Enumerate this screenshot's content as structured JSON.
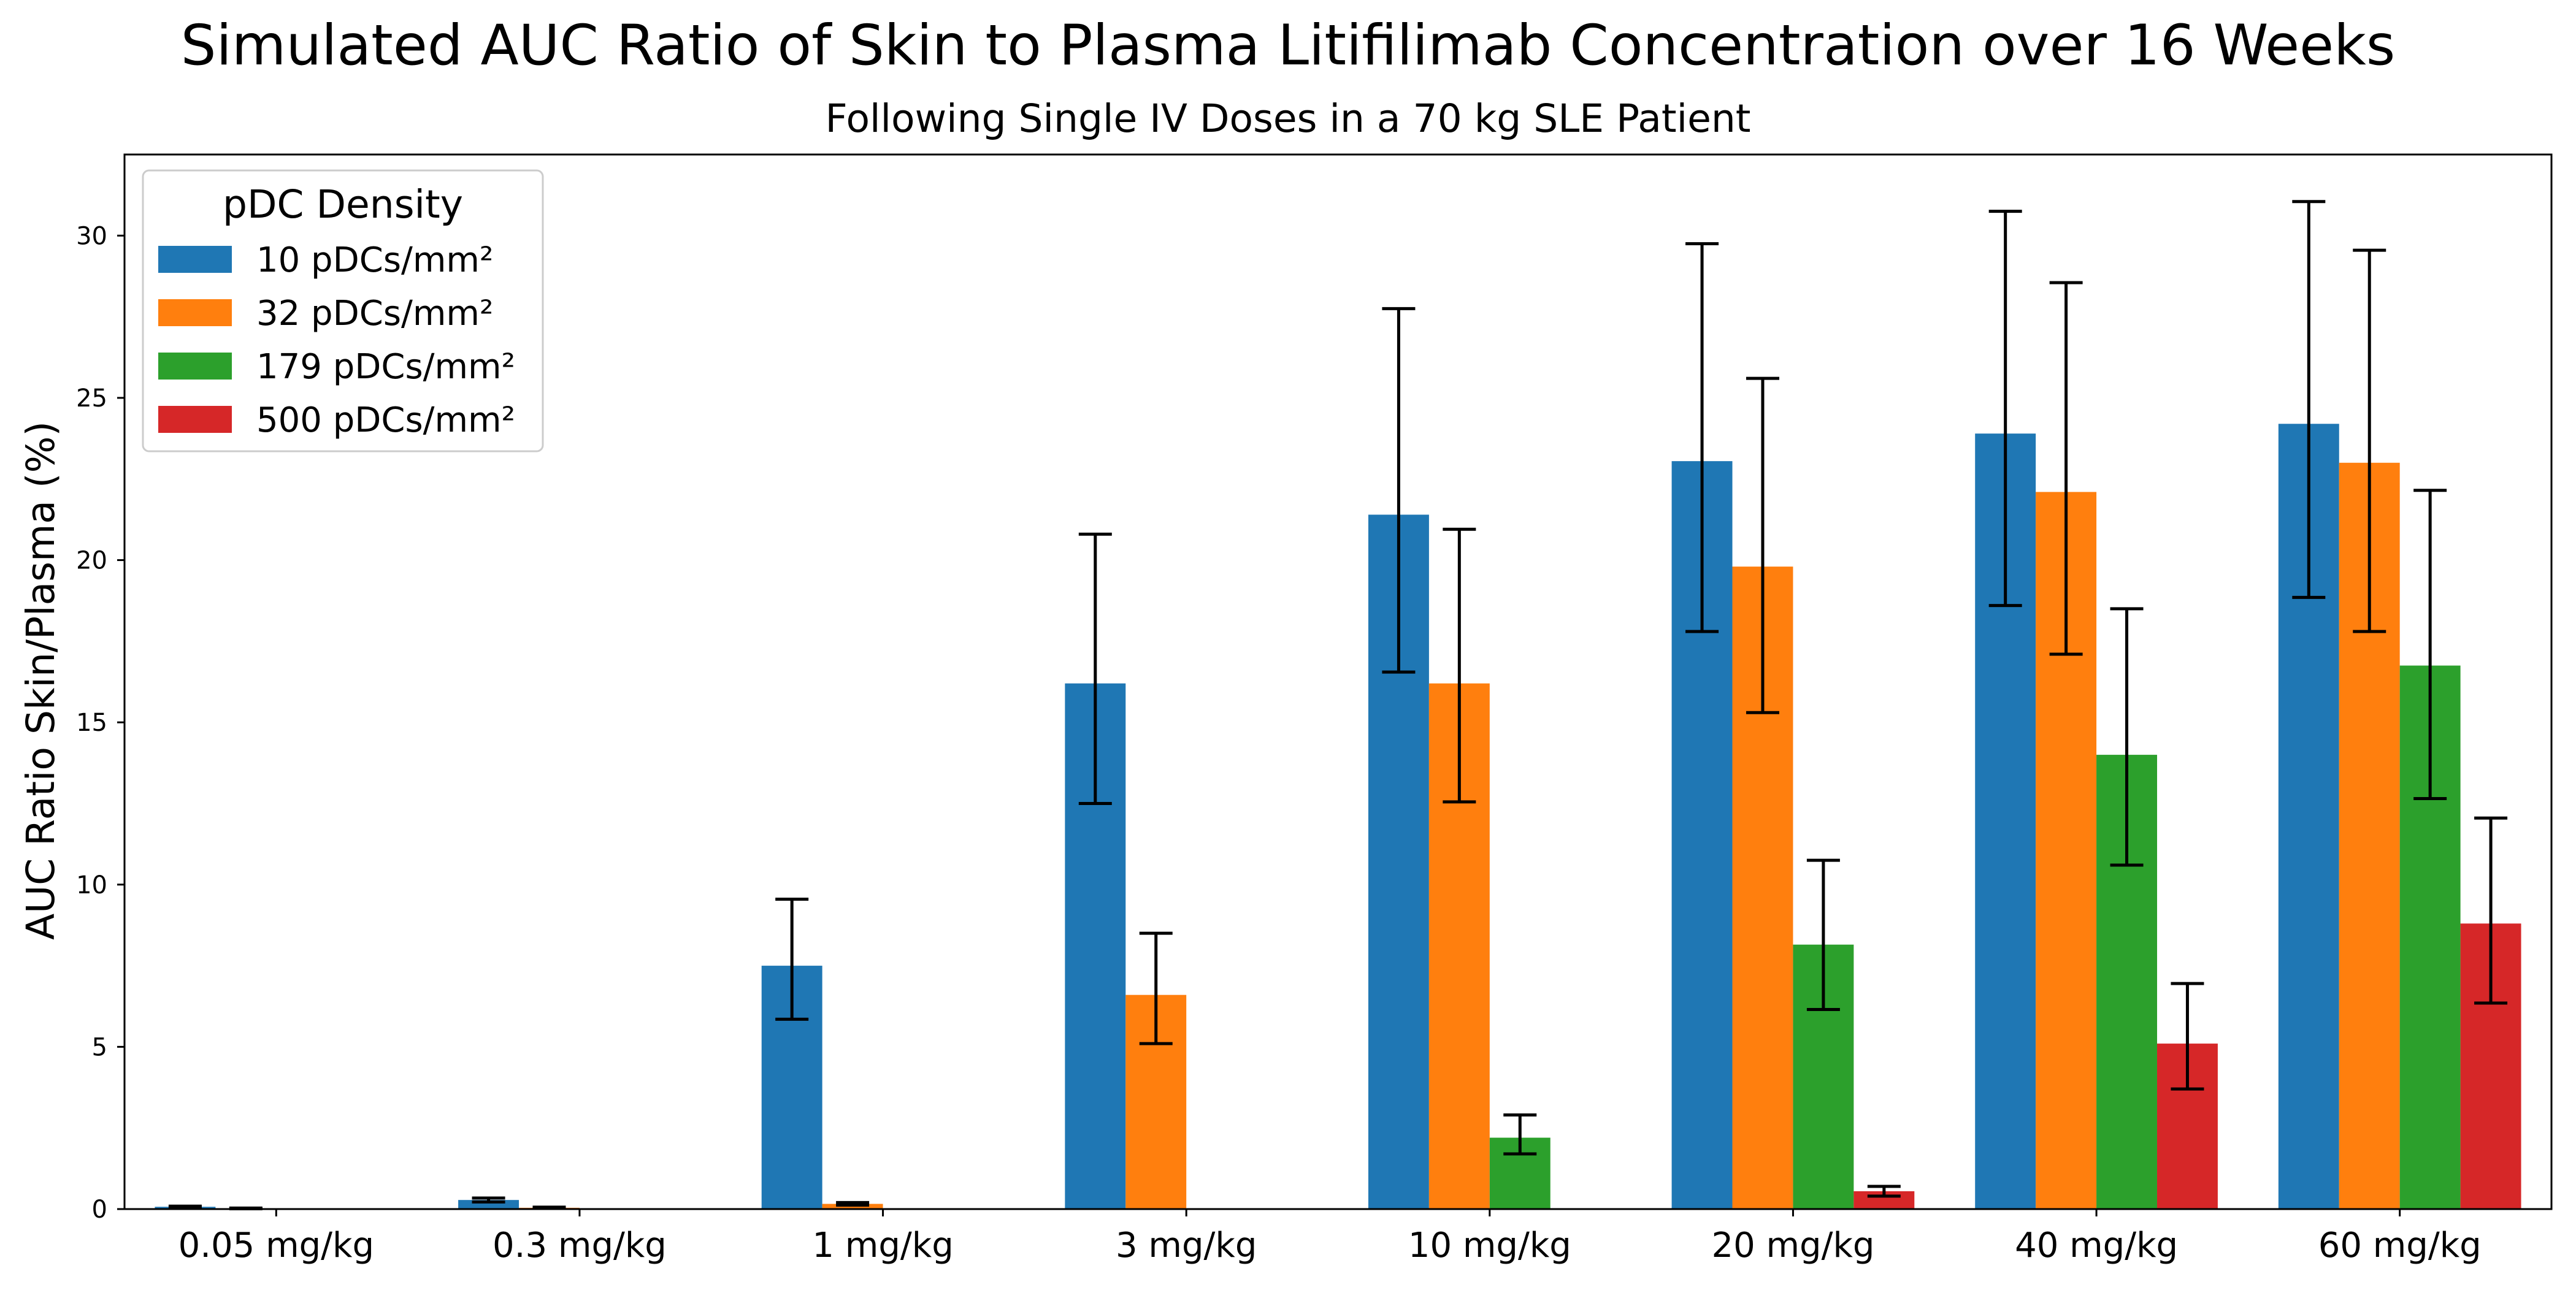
{
  "chart_data": {
    "type": "bar",
    "title": "Simulated AUC Ratio of Skin to Plasma Litifilimab Concentration over 16 Weeks",
    "subtitle": "Following Single IV Doses in a 70 kg SLE Patient",
    "xlabel": "",
    "ylabel": "AUC Ratio Skin/Plasma (%)",
    "ylim": [
      0,
      32.5
    ],
    "yticks": [
      0,
      5,
      10,
      15,
      20,
      25,
      30
    ],
    "grid": false,
    "legend": {
      "title": "pDC Density",
      "placement": "top-left"
    },
    "categories": [
      "0.05 mg/kg",
      "0.3 mg/kg",
      "1 mg/kg",
      "3 mg/kg",
      "10 mg/kg",
      "20 mg/kg",
      "40 mg/kg",
      "60 mg/kg"
    ],
    "series": [
      {
        "name": "10 pDCs/mm²",
        "color": "#1f77b4",
        "values": [
          0.07,
          0.28,
          7.5,
          16.2,
          21.4,
          23.05,
          23.9,
          24.2
        ],
        "error_low": [
          0.05,
          0.22,
          5.85,
          12.5,
          16.55,
          17.8,
          18.6,
          18.85
        ],
        "error_high": [
          0.09,
          0.34,
          9.55,
          20.8,
          27.75,
          29.75,
          30.75,
          31.05
        ]
      },
      {
        "name": "32 pDCs/mm²",
        "color": "#ff7f0e",
        "values": [
          0.02,
          0.04,
          0.16,
          6.6,
          16.2,
          19.8,
          22.1,
          23.0
        ],
        "error_low": [
          0.01,
          0.02,
          0.12,
          5.1,
          12.55,
          15.3,
          17.1,
          17.8
        ],
        "error_high": [
          0.03,
          0.06,
          0.2,
          8.5,
          20.95,
          25.6,
          28.55,
          29.55
        ]
      },
      {
        "name": "179 pDCs/mm²",
        "color": "#2ca02c",
        "values": [
          0.0,
          0.0,
          0.0,
          0.0,
          2.2,
          8.15,
          14.0,
          16.75
        ],
        "error_low": [
          0.0,
          0.0,
          0.0,
          0.0,
          1.7,
          6.15,
          10.6,
          12.65
        ],
        "error_high": [
          0.0,
          0.0,
          0.0,
          0.0,
          2.9,
          10.75,
          18.5,
          22.15
        ]
      },
      {
        "name": "500 pDCs/mm²",
        "color": "#d62728",
        "values": [
          0.0,
          0.0,
          0.0,
          0.0,
          0.0,
          0.55,
          5.1,
          8.8
        ],
        "error_low": [
          0.0,
          0.0,
          0.0,
          0.0,
          0.0,
          0.4,
          3.7,
          6.35
        ],
        "error_high": [
          0.0,
          0.0,
          0.0,
          0.0,
          0.0,
          0.7,
          6.95,
          12.05
        ]
      }
    ]
  }
}
